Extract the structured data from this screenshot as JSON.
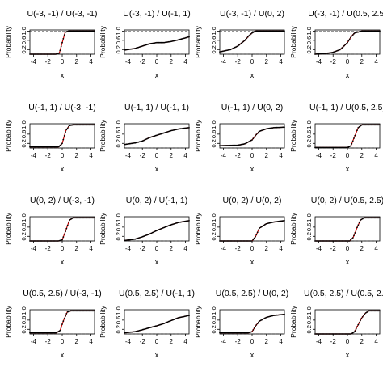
{
  "shared": {
    "xlabel": "x",
    "ylabel": "Probability",
    "xticks": [
      "-4",
      "-2",
      "0",
      "2",
      "4"
    ],
    "yticks": [
      "0.2",
      "0.6",
      "1.0"
    ],
    "xlim": [
      -4.5,
      4.5
    ],
    "ylim": [
      0,
      1.05
    ],
    "ytick_values": [
      0.2,
      0.6,
      1.0
    ],
    "xtick_values": [
      -4,
      -2,
      0,
      2,
      4
    ],
    "colors": {
      "points": "#000000",
      "true_curve": "#cc0000",
      "reference": "#888888"
    }
  },
  "chart_data": [
    {
      "type": "line",
      "title": "U(-3, -1) / U(-3, -1)",
      "series": [
        {
          "x": [
            -4.5,
            -0.9,
            -0.4,
            0,
            0.4,
            0.9,
            2,
            4.5
          ],
          "y": [
            0,
            0,
            0.05,
            0.5,
            0.95,
            1,
            1,
            1
          ]
        }
      ]
    },
    {
      "type": "line",
      "title": "U(-3, -1) / U(-1, 1)",
      "series": [
        {
          "x": [
            -4.5,
            -3,
            -2,
            -1,
            0,
            1,
            2,
            3,
            4.5
          ],
          "y": [
            0.18,
            0.25,
            0.35,
            0.45,
            0.5,
            0.5,
            0.55,
            0.62,
            0.75
          ]
        }
      ]
    },
    {
      "type": "line",
      "title": "U(-3, -1) / U(0, 2)",
      "series": [
        {
          "x": [
            -4.5,
            -3,
            -2,
            -1,
            -0.5,
            0,
            0.5,
            4.5
          ],
          "y": [
            0.1,
            0.2,
            0.35,
            0.6,
            0.78,
            0.92,
            1,
            1
          ]
        }
      ]
    },
    {
      "type": "line",
      "title": "U(-3, -1) / U(0.5, 2.5)",
      "series": [
        {
          "x": [
            -4.5,
            -3,
            -2,
            -1,
            0,
            0.5,
            1,
            2,
            4.5
          ],
          "y": [
            0,
            0.03,
            0.08,
            0.2,
            0.5,
            0.75,
            0.92,
            1,
            1
          ]
        }
      ]
    },
    {
      "type": "line",
      "title": "U(-1, 1) / U(-3, -1)",
      "series": [
        {
          "x": [
            -4.5,
            -0.5,
            0,
            0.5,
            1,
            1.5,
            4.5
          ],
          "y": [
            0.05,
            0.05,
            0.2,
            0.75,
            0.97,
            1,
            1
          ]
        }
      ]
    },
    {
      "type": "line",
      "title": "U(-1, 1) / U(-1, 1)",
      "series": [
        {
          "x": [
            -4.5,
            -3,
            -2,
            -1,
            0,
            1,
            2,
            3,
            4.5
          ],
          "y": [
            0.15,
            0.22,
            0.3,
            0.45,
            0.55,
            0.65,
            0.75,
            0.82,
            0.88
          ]
        }
      ]
    },
    {
      "type": "line",
      "title": "U(-1, 1) / U(0, 2)",
      "series": [
        {
          "x": [
            -4.5,
            -2,
            -1,
            0,
            0.5,
            1,
            2,
            3,
            4.5
          ],
          "y": [
            0.1,
            0.12,
            0.18,
            0.35,
            0.55,
            0.72,
            0.83,
            0.88,
            0.9
          ]
        }
      ]
    },
    {
      "type": "line",
      "title": "U(-1, 1) / U(0.5, 2.5)",
      "series": [
        {
          "x": [
            -4.5,
            0,
            0.5,
            1,
            1.5,
            2,
            4.5
          ],
          "y": [
            0.02,
            0.02,
            0.1,
            0.5,
            0.88,
            1,
            1
          ]
        }
      ]
    },
    {
      "type": "line",
      "title": "U(0, 2) / U(-3, -1)",
      "series": [
        {
          "x": [
            -4.5,
            -0.5,
            0,
            0.5,
            1,
            1.5,
            4.5
          ],
          "y": [
            0,
            0,
            0.05,
            0.45,
            0.9,
            1,
            1
          ]
        }
      ]
    },
    {
      "type": "line",
      "title": "U(0, 2) / U(-1, 1)",
      "series": [
        {
          "x": [
            -4.5,
            -3,
            -2,
            -1,
            0,
            1,
            2,
            3,
            4.5
          ],
          "y": [
            0.02,
            0.08,
            0.18,
            0.3,
            0.45,
            0.58,
            0.7,
            0.8,
            0.88
          ]
        }
      ]
    },
    {
      "type": "line",
      "title": "U(0, 2) / U(0, 2)",
      "series": [
        {
          "x": [
            -4.5,
            0,
            0.5,
            1,
            2,
            3,
            4.5
          ],
          "y": [
            0,
            0,
            0.2,
            0.55,
            0.75,
            0.82,
            0.88
          ]
        }
      ]
    },
    {
      "type": "line",
      "title": "U(0, 2) / U(0.5, 2.5)",
      "series": [
        {
          "x": [
            -4.5,
            0.3,
            0.8,
            1.3,
            1.8,
            2.3,
            4.5
          ],
          "y": [
            0,
            0,
            0.15,
            0.55,
            0.9,
            1,
            1
          ]
        }
      ]
    },
    {
      "type": "line",
      "title": "U(0.5, 2.5) / U(-3, -1)",
      "series": [
        {
          "x": [
            -4.5,
            -0.8,
            -0.3,
            0.2,
            0.7,
            1.2,
            4.5
          ],
          "y": [
            0.05,
            0.05,
            0.15,
            0.6,
            0.95,
            1,
            1
          ]
        }
      ]
    },
    {
      "type": "line",
      "title": "U(0.5, 2.5) / U(-1, 1)",
      "series": [
        {
          "x": [
            -4.5,
            -3,
            -2,
            -1,
            0,
            1,
            2,
            3,
            4.5
          ],
          "y": [
            0.05,
            0.1,
            0.18,
            0.27,
            0.35,
            0.45,
            0.58,
            0.7,
            0.8
          ]
        }
      ]
    },
    {
      "type": "line",
      "title": "U(0.5, 2.5) / U(0, 2)",
      "series": [
        {
          "x": [
            -4.5,
            -0.5,
            0,
            0.5,
            1,
            2,
            3,
            4.5
          ],
          "y": [
            0.05,
            0.05,
            0.1,
            0.35,
            0.55,
            0.72,
            0.8,
            0.85
          ]
        }
      ]
    },
    {
      "type": "line",
      "title": "U(0.5, 2.5) / U(0.5, 2.5)",
      "series": [
        {
          "x": [
            -4.5,
            0.5,
            1,
            1.5,
            2,
            2.5,
            3,
            4.5
          ],
          "y": [
            0,
            0,
            0.1,
            0.4,
            0.7,
            0.9,
            1,
            1
          ]
        }
      ]
    }
  ]
}
